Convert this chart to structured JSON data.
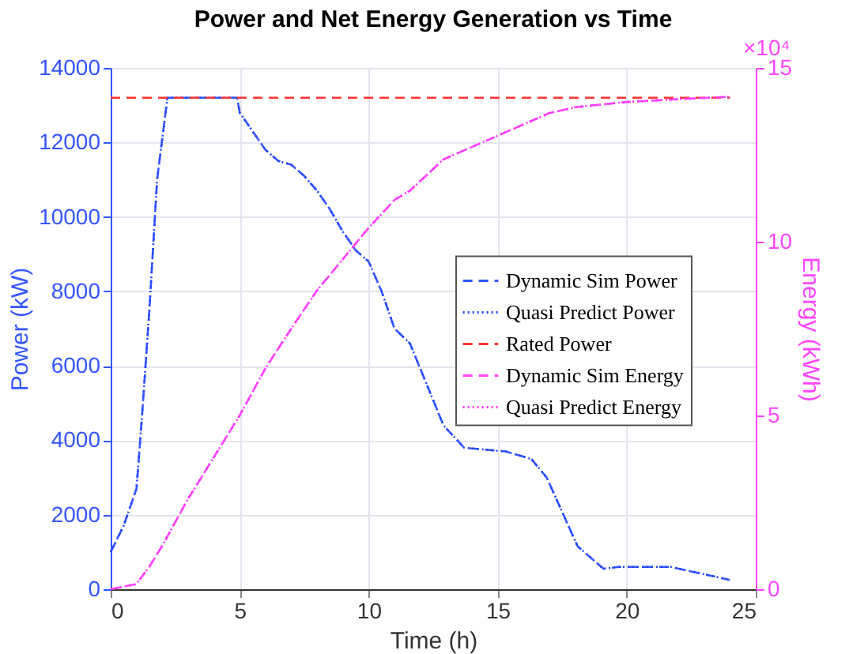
{
  "chart_data": {
    "type": "line",
    "title": "Power and Net Energy Generation vs Time",
    "xlabel": "Time (h)",
    "ylabel": "Power (kW)",
    "y2label": "Energy (kWh)",
    "xlim": [
      0,
      25
    ],
    "xticks": [
      0,
      5,
      10,
      15,
      20,
      25
    ],
    "ylim": [
      0,
      14000
    ],
    "yticks": [
      0,
      2000,
      4000,
      6000,
      8000,
      10000,
      12000,
      14000
    ],
    "y2lim": [
      0,
      15
    ],
    "y2ticks": [
      0,
      5,
      10,
      15
    ],
    "grid": true,
    "legend": "right",
    "annotations": [
      "×10⁴"
    ],
    "series": [
      {
        "name": "Dynamic Sim Power",
        "color": "#3355ff",
        "line_style": "dashed",
        "axis": "y",
        "x": [
          0,
          0.5,
          1,
          1.2,
          1.5,
          1.8,
          2.2,
          4.9,
          5,
          5.5,
          6,
          6.5,
          7,
          7.5,
          8,
          8.5,
          9,
          9.5,
          10,
          10.5,
          11,
          11.6,
          12.25,
          12.9,
          13.7,
          15.3,
          16.3,
          16.9,
          18.1,
          19.1,
          19.7,
          21.7,
          24
        ],
        "values": [
          1000,
          1700,
          2700,
          4500,
          7500,
          11000,
          13200,
          13200,
          12800,
          12300,
          11800,
          11500,
          11400,
          11100,
          10700,
          10200,
          9600,
          9100,
          8800,
          8000,
          7000,
          6600,
          5500,
          4400,
          3800,
          3700,
          3500,
          3000,
          1150,
          550,
          600,
          600,
          250
        ]
      },
      {
        "name": "Quasi Predict Power",
        "color": "#2244ff",
        "line_style": "dotted",
        "axis": "y",
        "x": [
          0,
          0.5,
          1,
          1.2,
          1.5,
          1.8,
          2.2,
          4.9,
          5,
          5.5,
          6,
          6.5,
          7,
          7.5,
          8,
          8.5,
          9,
          9.5,
          10,
          10.5,
          11,
          11.6,
          12.25,
          12.9,
          13.7,
          15.3,
          16.3,
          16.9,
          18.1,
          19.1,
          19.7,
          21.7,
          24
        ],
        "values": [
          1000,
          1700,
          2700,
          4500,
          7500,
          11000,
          13200,
          13200,
          12800,
          12300,
          11800,
          11500,
          11400,
          11100,
          10700,
          10200,
          9600,
          9100,
          8800,
          8000,
          7000,
          6600,
          5500,
          4400,
          3800,
          3700,
          3500,
          3000,
          1150,
          550,
          600,
          600,
          250
        ]
      },
      {
        "name": "Rated Power",
        "color": "#ff3333",
        "line_style": "dashed",
        "axis": "y",
        "x": [
          0,
          24
        ],
        "values": [
          13200,
          13200
        ]
      },
      {
        "name": "Dynamic Sim Energy",
        "color": "#ff44ff",
        "line_style": "dashed",
        "axis": "y2",
        "x": [
          0,
          1,
          1.5,
          2,
          3,
          4,
          5,
          6,
          7,
          8,
          9,
          10,
          11,
          11.6,
          12.9,
          15,
          17,
          18,
          20,
          22,
          24
        ],
        "values": [
          0,
          0.15,
          0.65,
          1.25,
          2.6,
          3.8,
          5.0,
          6.36,
          7.5,
          8.6,
          9.5,
          10.4,
          11.2,
          11.47,
          12.37,
          13.05,
          13.7,
          13.87,
          14.02,
          14.1,
          14.17
        ]
      },
      {
        "name": "Quasi Predict Energy",
        "color": "#ff33ff",
        "line_style": "dotted",
        "axis": "y2",
        "x": [
          0,
          1,
          1.5,
          2,
          3,
          4,
          5,
          6,
          7,
          8,
          9,
          10,
          11,
          11.6,
          12.9,
          15,
          17,
          18,
          20,
          22,
          24
        ],
        "values": [
          0,
          0.15,
          0.65,
          1.25,
          2.6,
          3.8,
          5.0,
          6.36,
          7.5,
          8.6,
          9.5,
          10.4,
          11.2,
          11.47,
          12.37,
          13.05,
          13.7,
          13.87,
          14.02,
          14.1,
          14.17
        ]
      }
    ]
  }
}
